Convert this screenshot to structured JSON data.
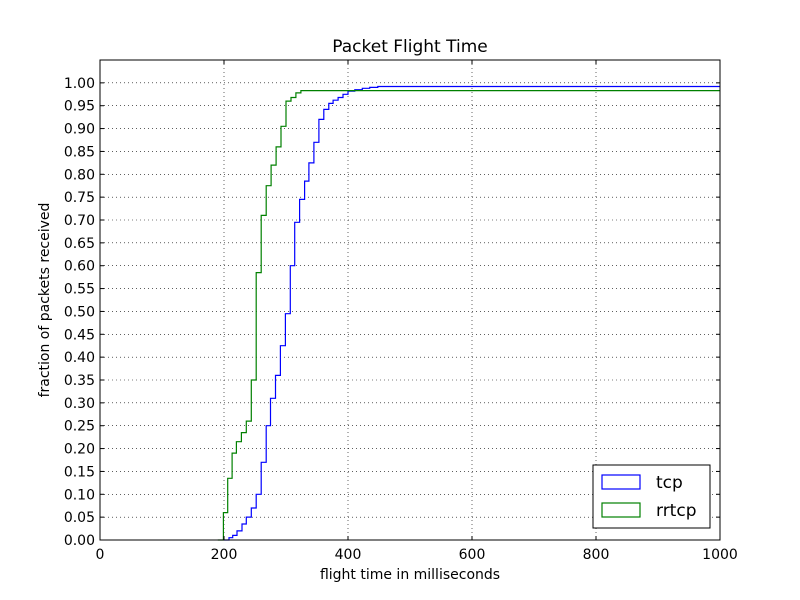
{
  "chart_data": {
    "type": "line",
    "title": "Packet Flight Time",
    "xlabel": "flight time in milliseconds",
    "ylabel": "fraction of packets received",
    "xlim": [
      0,
      1000
    ],
    "ylim": [
      0,
      1.05
    ],
    "xticks": [
      0,
      200,
      400,
      600,
      800,
      1000
    ],
    "xtick_labels": [
      "0",
      "200",
      "400",
      "600",
      "800",
      "1000"
    ],
    "yticks": [
      0,
      0.05,
      0.1,
      0.15,
      0.2,
      0.25,
      0.3,
      0.35,
      0.4,
      0.45,
      0.5,
      0.55,
      0.6,
      0.65,
      0.7,
      0.75,
      0.8,
      0.85,
      0.9,
      0.95,
      1.0
    ],
    "ytick_labels": [
      "0.00",
      "0.05",
      "0.10",
      "0.15",
      "0.20",
      "0.25",
      "0.30",
      "0.35",
      "0.40",
      "0.45",
      "0.50",
      "0.55",
      "0.60",
      "0.65",
      "0.70",
      "0.75",
      "0.80",
      "0.85",
      "0.90",
      "0.95",
      "1.00"
    ],
    "grid": true,
    "legend_position": "bottom-right",
    "step": "post",
    "series": [
      {
        "name": "tcp",
        "color": "#0000ff",
        "x": [
          200,
          208,
          214,
          221,
          229,
          236,
          244,
          252,
          260,
          268,
          275,
          283,
          291,
          299,
          307,
          314,
          322,
          330,
          337,
          345,
          353,
          361,
          369,
          376,
          384,
          392,
          400,
          411,
          423,
          435,
          448,
          1000
        ],
        "y": [
          0.0,
          0.005,
          0.01,
          0.02,
          0.035,
          0.05,
          0.07,
          0.1,
          0.17,
          0.25,
          0.31,
          0.36,
          0.425,
          0.495,
          0.6,
          0.695,
          0.745,
          0.785,
          0.825,
          0.87,
          0.92,
          0.942,
          0.955,
          0.962,
          0.968,
          0.975,
          0.982,
          0.985,
          0.988,
          0.99,
          0.992,
          0.992
        ]
      },
      {
        "name": "rrtcp",
        "color": "#008000",
        "x": [
          190,
          199,
          206,
          213,
          220,
          228,
          236,
          244,
          252,
          260,
          268,
          276,
          284,
          292,
          300,
          308,
          316,
          324,
          340,
          365,
          385,
          410,
          430,
          1000
        ],
        "y": [
          0.0,
          0.06,
          0.135,
          0.19,
          0.215,
          0.235,
          0.26,
          0.35,
          0.585,
          0.71,
          0.775,
          0.82,
          0.86,
          0.905,
          0.96,
          0.968,
          0.978,
          0.983,
          0.983,
          0.983,
          0.983,
          0.983,
          0.983,
          0.983
        ]
      }
    ]
  }
}
